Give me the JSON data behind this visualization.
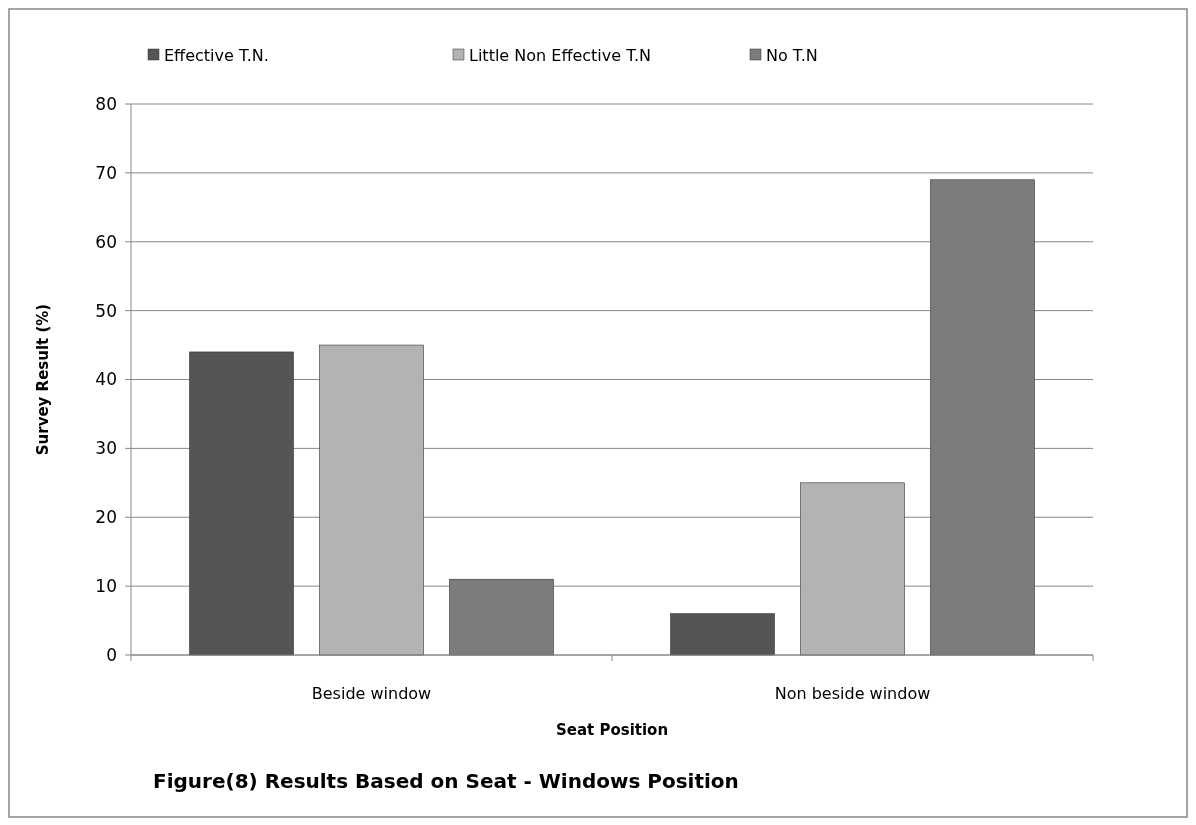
{
  "chart_data": {
    "type": "bar",
    "title": "Figure(8) Results Based on Seat - Windows Position",
    "xlabel": "Seat Position",
    "ylabel": "Survey Result (%)",
    "categories": [
      "Beside window",
      "Non beside window"
    ],
    "series": [
      {
        "name": "Effective T.N.",
        "color": "#555555",
        "values": [
          44,
          6
        ]
      },
      {
        "name": "Little Non Effective T.N",
        "color": "#b3b3b3",
        "values": [
          45,
          25
        ]
      },
      {
        "name": "No T.N",
        "color": "#7c7c7c",
        "values": [
          11,
          69
        ]
      }
    ],
    "ylim": [
      0,
      80
    ],
    "yticks": [
      0,
      10,
      20,
      30,
      40,
      50,
      60,
      70,
      80
    ],
    "grid": "y",
    "legend": "top"
  }
}
